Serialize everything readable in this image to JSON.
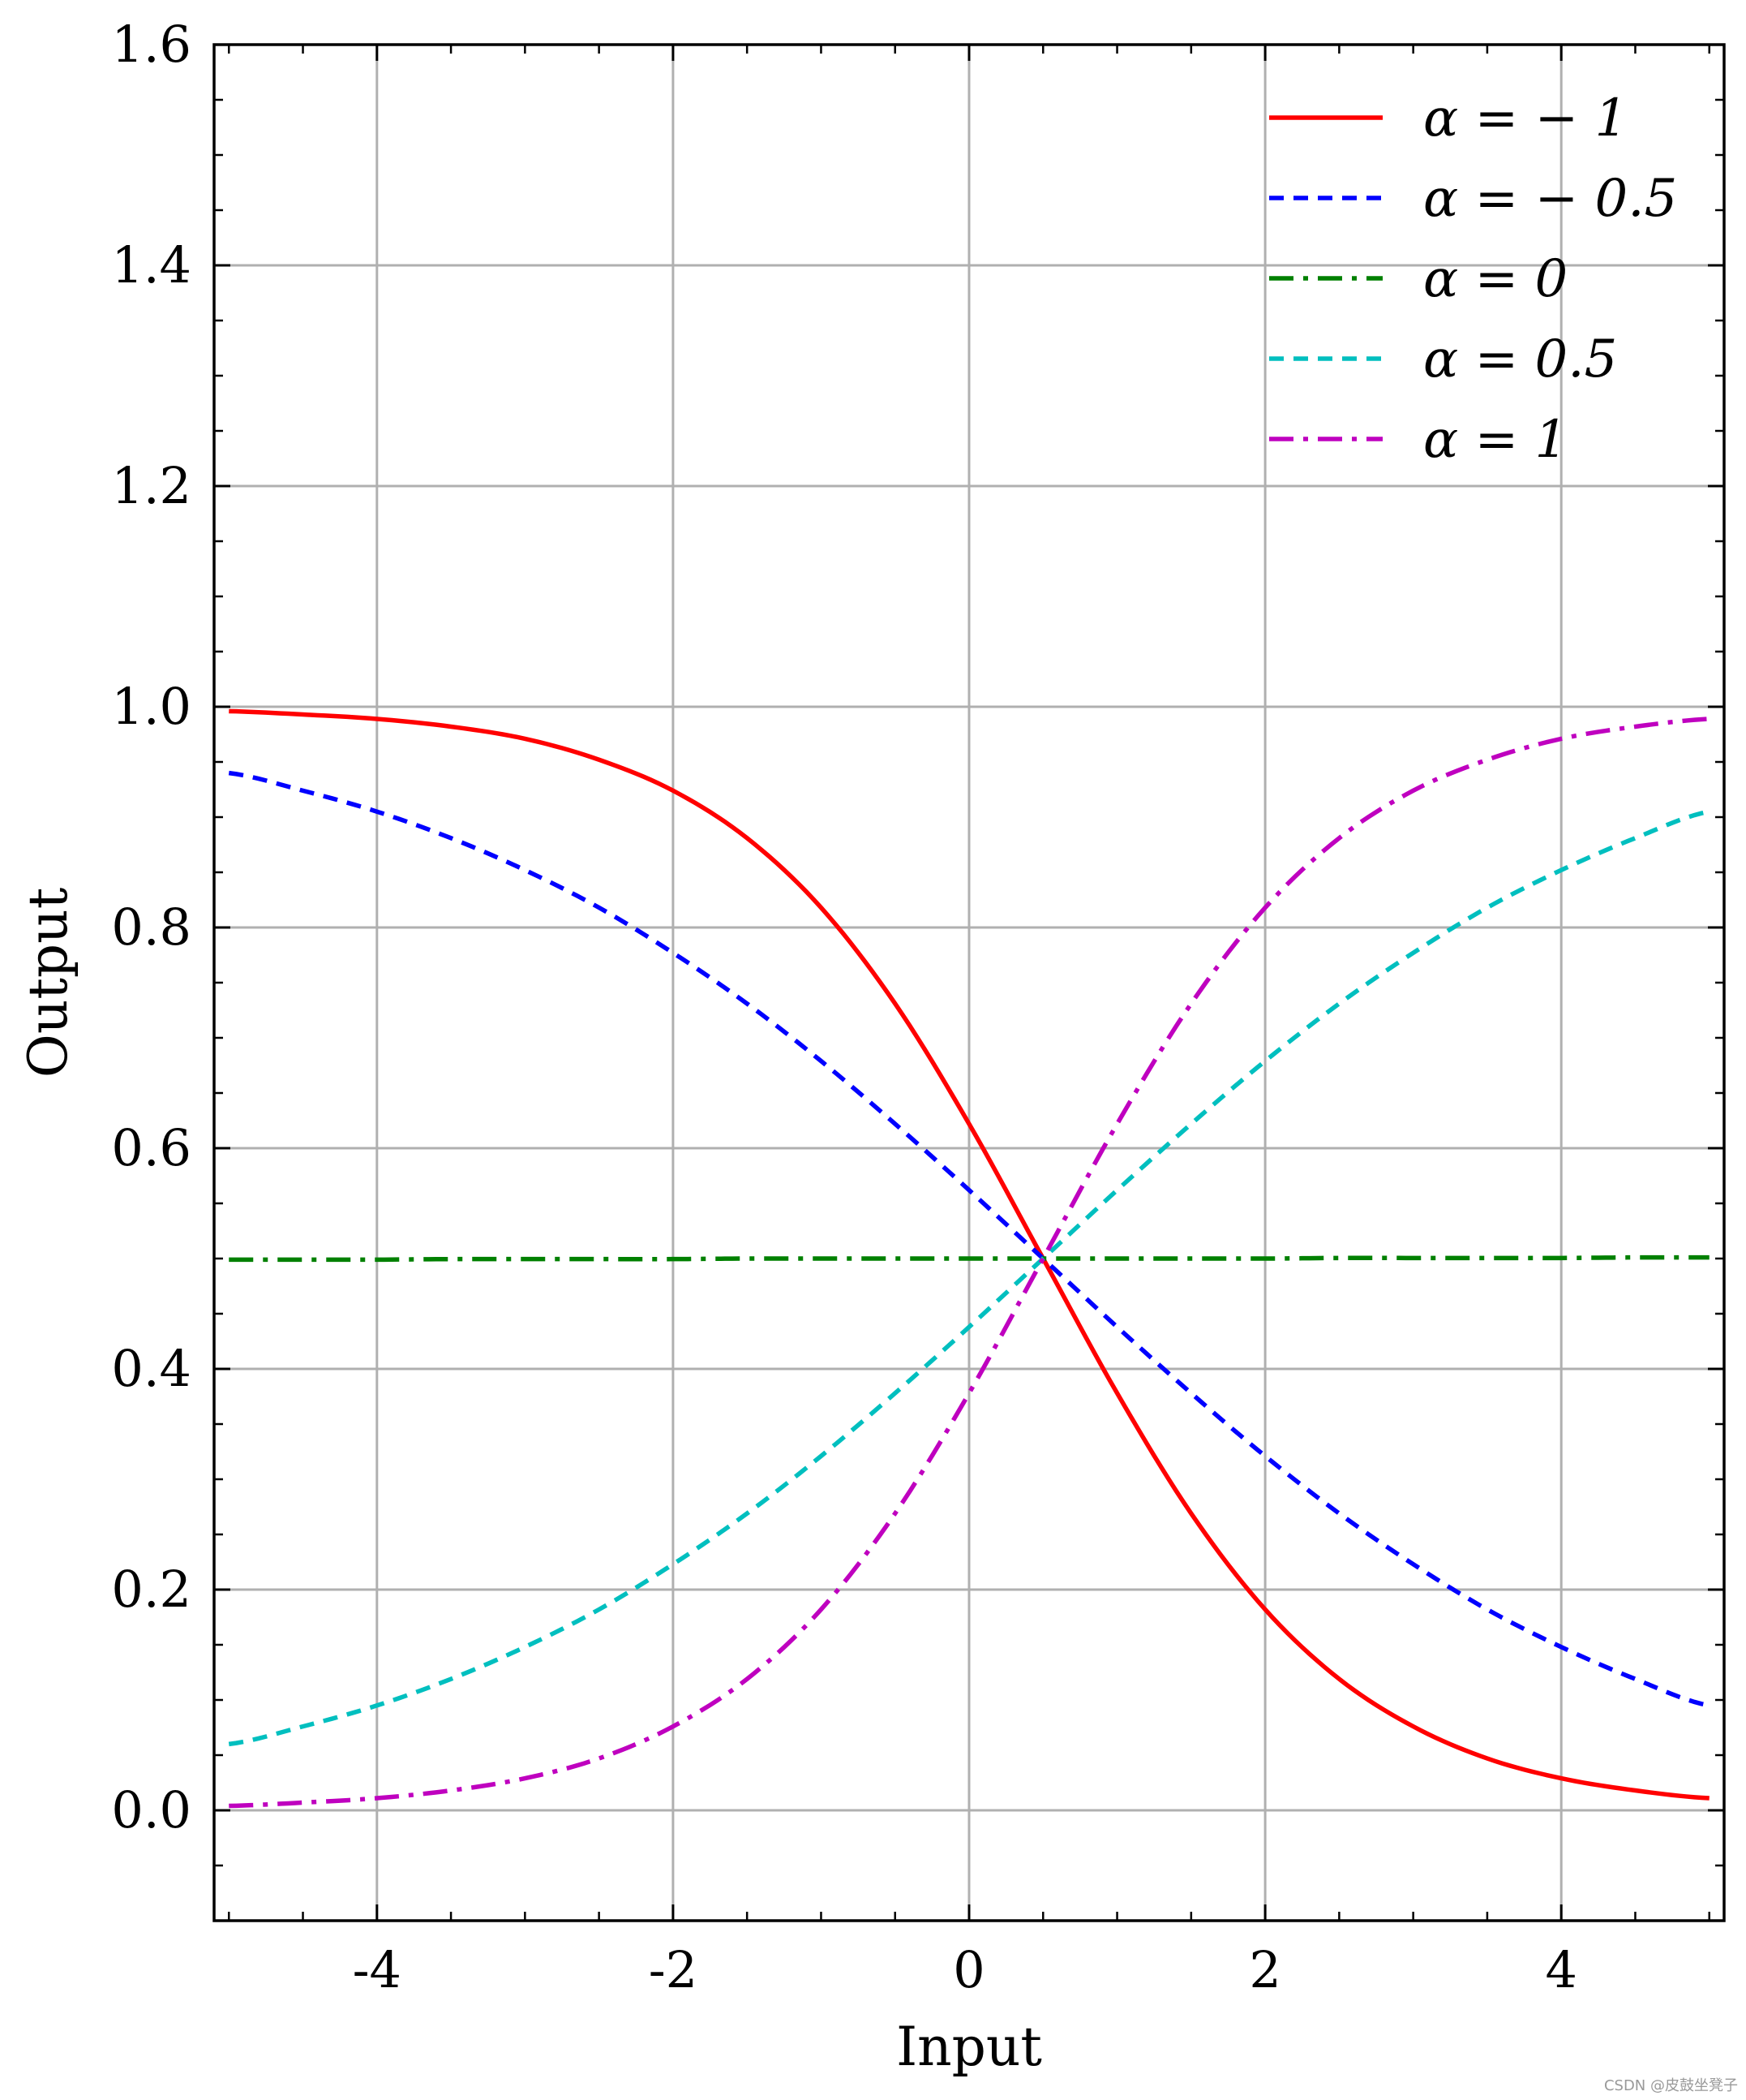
{
  "chart_data": {
    "type": "line",
    "title": "",
    "xlabel": "Input",
    "ylabel": "Output",
    "xlim": [
      -5.1,
      5.1
    ],
    "ylim": [
      -0.1,
      1.6
    ],
    "xticks": [
      -4,
      -2,
      0,
      2,
      4
    ],
    "xtick_labels": [
      "-4",
      "-2",
      "0",
      "2",
      "4"
    ],
    "yticks": [
      0.0,
      0.2,
      0.4,
      0.6,
      0.8,
      1.0,
      1.2,
      1.4,
      1.6
    ],
    "ytick_labels": [
      "0.0",
      "0.2",
      "0.4",
      "0.6",
      "0.8",
      "1.0",
      "1.2",
      "1.4",
      "1.6"
    ],
    "grid": true,
    "legend_position": "top-right",
    "x": [
      -5,
      -4.5,
      -4,
      -3.5,
      -3,
      -2.5,
      -2,
      -1.5,
      -1,
      -0.5,
      0,
      0.5,
      1,
      1.5,
      2,
      2.5,
      3,
      3.5,
      4,
      4.5,
      5
    ],
    "series": [
      {
        "name": "α = −1",
        "legend_label": "α = − 1",
        "color": "#ff0000",
        "dash": "solid",
        "values": [
          0.996,
          0.993,
          0.989,
          0.982,
          0.971,
          0.952,
          0.924,
          0.881,
          0.818,
          0.731,
          0.622,
          0.5,
          0.378,
          0.269,
          0.182,
          0.119,
          0.076,
          0.047,
          0.029,
          0.018,
          0.011
        ]
      },
      {
        "name": "α = −0.5",
        "legend_label": "α = − 0.5",
        "color": "#0000ff",
        "dash": "dashed",
        "values": [
          0.94,
          0.924,
          0.905,
          0.881,
          0.852,
          0.818,
          0.777,
          0.731,
          0.679,
          0.622,
          0.562,
          0.5,
          0.438,
          0.378,
          0.321,
          0.269,
          0.223,
          0.182,
          0.148,
          0.119,
          0.095
        ]
      },
      {
        "name": "α = 0",
        "legend_label": "α = 0",
        "color": "#008000",
        "dash": "dashdot",
        "values": [
          0.499,
          0.499,
          0.499,
          0.4995,
          0.4995,
          0.4995,
          0.4995,
          0.5,
          0.5,
          0.5,
          0.5,
          0.5,
          0.5,
          0.5,
          0.5,
          0.5005,
          0.5005,
          0.5005,
          0.5005,
          0.501,
          0.501
        ]
      },
      {
        "name": "α = 0.5",
        "legend_label": "α = 0.5",
        "color": "#00bfbf",
        "dash": "dashed",
        "values": [
          0.06,
          0.076,
          0.095,
          0.119,
          0.148,
          0.182,
          0.223,
          0.269,
          0.321,
          0.378,
          0.438,
          0.5,
          0.562,
          0.622,
          0.679,
          0.731,
          0.777,
          0.818,
          0.852,
          0.881,
          0.905
        ]
      },
      {
        "name": "α = 1",
        "legend_label": "α = 1",
        "color": "#bf00bf",
        "dash": "dashdot",
        "values": [
          0.004,
          0.007,
          0.011,
          0.018,
          0.029,
          0.047,
          0.076,
          0.119,
          0.182,
          0.269,
          0.378,
          0.5,
          0.622,
          0.731,
          0.818,
          0.881,
          0.924,
          0.952,
          0.971,
          0.982,
          0.989
        ]
      }
    ]
  },
  "watermark": "CSDN @皮鼓坐凳子"
}
